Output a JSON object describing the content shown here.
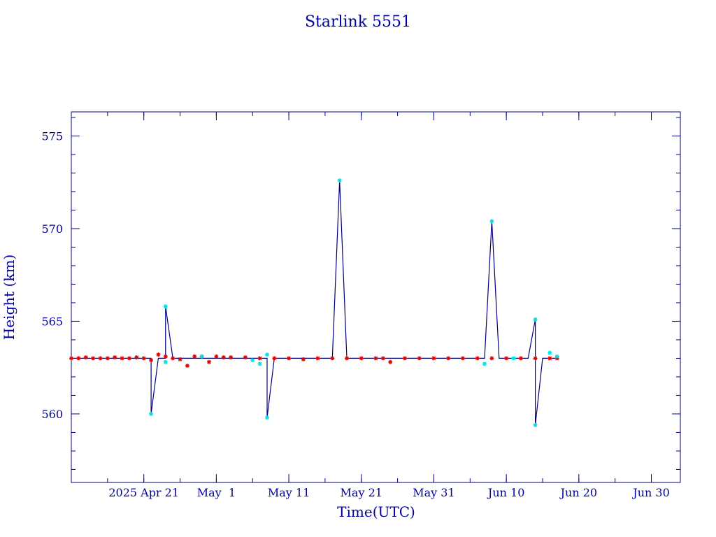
{
  "chart_data": {
    "type": "line",
    "title": "Starlink 5551",
    "xlabel": "Time(UTC)",
    "ylabel": "Height (km)",
    "x_unit": "days",
    "xlim": [
      "2025-04-11",
      "2025-07-04"
    ],
    "ylim": [
      556.3,
      576.3
    ],
    "x_ticks": [
      {
        "date": "2025-04-21",
        "label": "2025 Apr 21"
      },
      {
        "date": "2025-05-01",
        "label": "May  1"
      },
      {
        "date": "2025-05-11",
        "label": "May 11"
      },
      {
        "date": "2025-05-21",
        "label": "May 21"
      },
      {
        "date": "2025-05-31",
        "label": "May 31"
      },
      {
        "date": "2025-06-10",
        "label": "Jun 10"
      },
      {
        "date": "2025-06-20",
        "label": "Jun 20"
      },
      {
        "date": "2025-06-30",
        "label": "Jun 30"
      }
    ],
    "x_minor_step_days": 5,
    "y_ticks": [
      560,
      565,
      570,
      575
    ],
    "y_minor_step": 1,
    "colors": {
      "line": "#000080",
      "baseline_points": "#e00000",
      "maneuver_points": "#00e0e0",
      "frame": "#000080",
      "text": "#0000a0"
    },
    "series": [
      {
        "marker": "red-star",
        "values": [
          [
            "2025-04-11",
            563.0
          ],
          [
            "2025-04-12",
            563.0
          ],
          [
            "2025-04-13",
            563.05
          ],
          [
            "2025-04-14",
            563.0
          ],
          [
            "2025-04-15",
            563.0
          ],
          [
            "2025-04-16",
            563.0
          ],
          [
            "2025-04-17",
            563.05
          ],
          [
            "2025-04-18",
            563.0
          ],
          [
            "2025-04-19",
            563.0
          ],
          [
            "2025-04-20",
            563.05
          ],
          [
            "2025-04-21",
            563.0
          ],
          [
            "2025-04-22",
            562.9
          ],
          [
            "2025-04-23",
            563.2
          ],
          [
            "2025-04-24",
            563.1
          ],
          [
            "2025-04-25",
            563.0
          ],
          [
            "2025-04-26",
            562.95
          ],
          [
            "2025-04-27",
            562.6
          ],
          [
            "2025-04-28",
            563.1
          ],
          [
            "2025-04-29",
            563.1
          ],
          [
            "2025-04-30",
            562.8
          ],
          [
            "2025-05-01",
            563.1
          ],
          [
            "2025-05-02",
            563.05
          ],
          [
            "2025-05-03",
            563.05
          ],
          [
            "2025-05-05",
            563.05
          ],
          [
            "2025-05-07",
            563.0
          ],
          [
            "2025-05-09",
            563.0
          ],
          [
            "2025-05-11",
            563.0
          ],
          [
            "2025-05-13",
            562.95
          ],
          [
            "2025-05-15",
            563.0
          ],
          [
            "2025-05-17",
            563.0
          ],
          [
            "2025-05-19",
            563.0
          ],
          [
            "2025-05-21",
            563.0
          ],
          [
            "2025-05-23",
            563.0
          ],
          [
            "2025-05-24",
            563.0
          ],
          [
            "2025-05-25",
            562.8
          ],
          [
            "2025-05-27",
            563.0
          ],
          [
            "2025-05-29",
            563.0
          ],
          [
            "2025-05-31",
            563.0
          ],
          [
            "2025-06-02",
            563.0
          ],
          [
            "2025-06-04",
            563.0
          ],
          [
            "2025-06-06",
            563.0
          ],
          [
            "2025-06-08",
            563.0
          ],
          [
            "2025-06-10",
            563.0
          ],
          [
            "2025-06-12",
            563.0
          ],
          [
            "2025-06-14",
            563.0
          ],
          [
            "2025-06-16",
            563.0
          ],
          [
            "2025-06-17",
            563.0
          ]
        ]
      },
      {
        "marker": "cyan-star",
        "values": [
          [
            "2025-04-22",
            560.0
          ],
          [
            "2025-04-24",
            565.8
          ],
          [
            "2025-04-24",
            562.8
          ],
          [
            "2025-04-29",
            563.1
          ],
          [
            "2025-05-06",
            562.9
          ],
          [
            "2025-05-07",
            562.7
          ],
          [
            "2025-05-08",
            563.2
          ],
          [
            "2025-05-08",
            559.8
          ],
          [
            "2025-05-18",
            572.6
          ],
          [
            "2025-06-07",
            562.7
          ],
          [
            "2025-06-08",
            570.4
          ],
          [
            "2025-06-11",
            563.0
          ],
          [
            "2025-06-14",
            565.1
          ],
          [
            "2025-06-14",
            559.4
          ],
          [
            "2025-06-16",
            563.3
          ],
          [
            "2025-06-17",
            563.1
          ]
        ]
      }
    ],
    "line_path": [
      [
        "2025-04-11",
        563.0
      ],
      [
        "2025-04-21",
        563.0
      ],
      [
        "2025-04-22",
        563.0
      ],
      [
        "2025-04-22",
        560.0
      ],
      [
        "2025-04-23",
        563.0
      ],
      [
        "2025-04-24",
        563.0
      ],
      [
        "2025-04-24",
        565.8
      ],
      [
        "2025-04-25",
        563.0
      ],
      [
        "2025-05-08",
        563.0
      ],
      [
        "2025-05-08",
        559.8
      ],
      [
        "2025-05-09",
        563.0
      ],
      [
        "2025-05-17",
        563.0
      ],
      [
        "2025-05-18",
        572.6
      ],
      [
        "2025-05-19",
        563.0
      ],
      [
        "2025-06-07",
        563.0
      ],
      [
        "2025-06-08",
        570.4
      ],
      [
        "2025-06-09",
        563.0
      ],
      [
        "2025-06-13",
        563.0
      ],
      [
        "2025-06-14",
        565.1
      ],
      [
        "2025-06-14",
        559.4
      ],
      [
        "2025-06-15",
        563.0
      ],
      [
        "2025-06-17",
        563.0
      ]
    ]
  }
}
